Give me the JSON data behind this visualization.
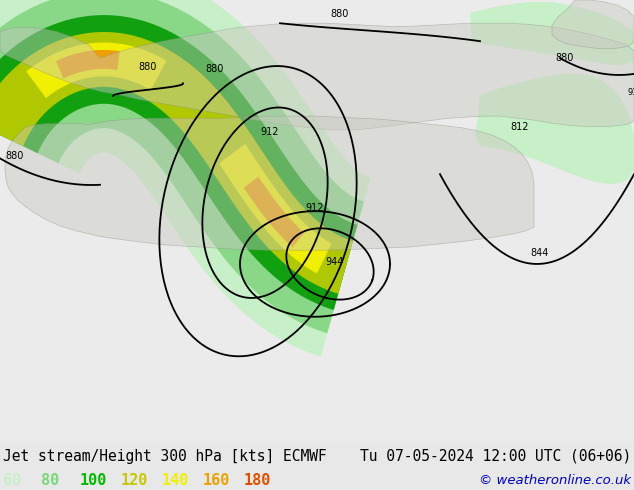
{
  "title_left": "Jet stream/Height 300 hPa [kts] ECMWF",
  "title_right": "Tu 07-05-2024 12:00 UTC (06+06)",
  "copyright": "© weatheronline.co.uk",
  "legend_values": [
    "60",
    "80",
    "100",
    "120",
    "140",
    "160",
    "180"
  ],
  "legend_colors": [
    "#c8f0c8",
    "#78d878",
    "#00bb00",
    "#c8c800",
    "#f0f000",
    "#f0a000",
    "#e05000"
  ],
  "bg_color": "#e8e8e8",
  "land_color": "#c8c8c8",
  "ocean_color": "#e8e8e8",
  "title_color": "#000000",
  "title_fontsize": 10.5,
  "legend_fontsize": 11,
  "copyright_color": "#0000cc",
  "figsize": [
    6.34,
    4.9
  ],
  "dpi": 100,
  "contour_color": "#000000",
  "contour_lw": 1.3
}
